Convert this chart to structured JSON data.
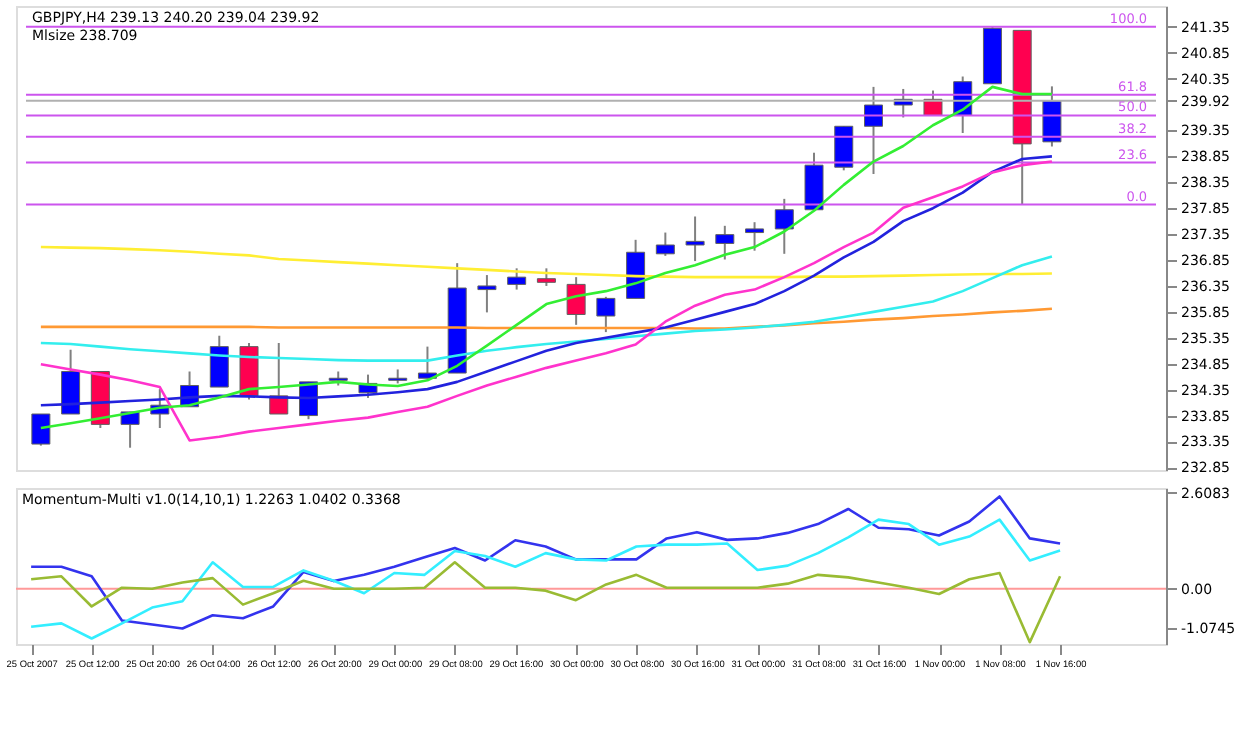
{
  "chart_data": [
    {
      "type": "candlestick",
      "title": "GBPJPY,H4 239.13 240.20 239.04 239.92",
      "subtitle": "Mlsize 238.709",
      "categories": [
        null,
        null,
        null,
        null,
        null,
        null,
        null,
        null,
        null,
        null,
        null,
        null,
        null,
        null,
        null,
        null,
        null,
        null,
        null,
        null,
        null,
        null,
        null,
        null,
        null,
        null,
        null,
        null,
        null,
        null,
        null,
        null,
        null,
        null,
        null
      ],
      "ohlc": [
        [
          233.3,
          233.88,
          233.27,
          233.88
        ],
        [
          233.88,
          235.12,
          233.88,
          234.7
        ],
        [
          234.7,
          234.7,
          233.61,
          233.68
        ],
        [
          233.68,
          233.92,
          233.23,
          233.92
        ],
        [
          233.88,
          234.36,
          233.61,
          234.05
        ],
        [
          234.02,
          234.7,
          234.02,
          234.43
        ],
        [
          234.4,
          235.39,
          234.4,
          235.18
        ],
        [
          235.18,
          235.25,
          234.16,
          234.23
        ],
        [
          234.23,
          235.25,
          233.88,
          233.88
        ],
        [
          233.85,
          234.5,
          233.78,
          234.5
        ],
        [
          234.53,
          234.7,
          234.43,
          234.57
        ],
        [
          234.29,
          234.64,
          234.19,
          234.47
        ],
        [
          234.53,
          234.74,
          234.47,
          234.57
        ],
        [
          234.57,
          235.18,
          234.57,
          234.67
        ],
        [
          234.67,
          236.79,
          234.67,
          236.31
        ],
        [
          236.28,
          236.56,
          235.84,
          236.35
        ],
        [
          236.38,
          236.69,
          236.28,
          236.52
        ],
        [
          236.49,
          236.69,
          236.35,
          236.42
        ],
        [
          236.38,
          236.52,
          235.6,
          235.8
        ],
        [
          235.77,
          236.14,
          235.46,
          236.11
        ],
        [
          236.11,
          237.24,
          236.11,
          237.0
        ],
        [
          236.97,
          237.38,
          236.93,
          237.14
        ],
        [
          237.14,
          237.69,
          236.83,
          237.21
        ],
        [
          237.17,
          237.51,
          236.86,
          237.34
        ],
        [
          237.38,
          237.58,
          237.03,
          237.45
        ],
        [
          237.45,
          238.03,
          236.97,
          237.82
        ],
        [
          237.82,
          238.92,
          237.82,
          238.68
        ],
        [
          238.64,
          239.43,
          238.58,
          239.43
        ],
        [
          239.43,
          240.19,
          238.51,
          239.84
        ],
        [
          239.84,
          240.15,
          239.6,
          239.95
        ],
        [
          239.95,
          240.12,
          239.64,
          239.64
        ],
        [
          239.64,
          240.39,
          239.3,
          240.29
        ],
        [
          240.25,
          241.35,
          240.25,
          241.32
        ],
        [
          241.28,
          241.28,
          237.92,
          239.09
        ],
        [
          239.13,
          240.2,
          239.04,
          239.92
        ]
      ],
      "colors": [
        "#0000ff",
        "#0000ff",
        "#ff0050",
        "#0000ff",
        "#0000ff",
        "#0000ff",
        "#0000ff",
        "#ff0050",
        "#ff0050",
        "#0000ff",
        "#0000ff",
        "#0000ff",
        "#0000ff",
        "#0000ff",
        "#0000ff",
        "#0000ff",
        "#0000ff",
        "#ff0050",
        "#ff0050",
        "#0000ff",
        "#0000ff",
        "#0000ff",
        "#0000ff",
        "#0000ff",
        "#0000ff",
        "#0000ff",
        "#0000ff",
        "#0000ff",
        "#0000ff",
        "#0000ff",
        "#ff0050",
        "#0000ff",
        "#0000ff",
        "#ff0050",
        "#0000ff"
      ],
      "series": [
        {
          "type": "line",
          "color": "#ffee33",
          "values": [
            237.1,
            237.09,
            237.08,
            237.06,
            237.04,
            237.01,
            236.97,
            236.94,
            236.87,
            236.84,
            236.81,
            236.78,
            236.75,
            236.72,
            236.69,
            236.66,
            236.63,
            236.6,
            236.58,
            236.56,
            236.54,
            236.53,
            236.52,
            236.52,
            236.52,
            236.52,
            236.53,
            236.53,
            236.54,
            236.55,
            236.56,
            236.57,
            236.58,
            236.58,
            236.59
          ]
        },
        {
          "type": "line",
          "color": "#ff9933",
          "values": [
            235.56,
            235.56,
            235.56,
            235.56,
            235.56,
            235.56,
            235.56,
            235.56,
            235.55,
            235.55,
            235.55,
            235.55,
            235.55,
            235.55,
            235.55,
            235.54,
            235.54,
            235.54,
            235.54,
            235.54,
            235.54,
            235.54,
            235.53,
            235.53,
            235.56,
            235.59,
            235.63,
            235.66,
            235.7,
            235.73,
            235.77,
            235.8,
            235.84,
            235.87,
            235.91
          ]
        },
        {
          "type": "line",
          "color": "#33eeee",
          "values": [
            235.25,
            235.23,
            235.18,
            235.13,
            235.09,
            235.05,
            235.01,
            234.98,
            234.96,
            234.94,
            234.92,
            234.91,
            234.91,
            234.91,
            235.01,
            235.1,
            235.17,
            235.23,
            235.28,
            235.33,
            235.38,
            235.43,
            235.48,
            235.51,
            235.55,
            235.6,
            235.66,
            235.75,
            235.85,
            235.95,
            236.05,
            236.25,
            236.5,
            236.75,
            236.92
          ]
        },
        {
          "type": "line",
          "color": "#2222dd",
          "values": [
            234.05,
            234.07,
            234.1,
            234.13,
            234.16,
            234.2,
            234.23,
            234.22,
            234.2,
            234.19,
            234.22,
            234.25,
            234.3,
            234.36,
            234.5,
            234.7,
            234.9,
            235.1,
            235.25,
            235.35,
            235.45,
            235.55,
            235.7,
            235.85,
            236.0,
            236.25,
            236.55,
            236.9,
            237.2,
            237.6,
            237.85,
            238.15,
            238.55,
            238.8,
            238.85
          ]
        },
        {
          "type": "line",
          "color": "#ff33cc",
          "values": [
            234.84,
            234.74,
            234.64,
            234.53,
            234.4,
            233.37,
            233.44,
            233.54,
            233.61,
            233.68,
            233.75,
            233.81,
            233.92,
            234.02,
            234.23,
            234.43,
            234.6,
            234.77,
            234.91,
            235.05,
            235.22,
            235.66,
            235.97,
            236.18,
            236.28,
            236.52,
            236.79,
            237.1,
            237.38,
            237.86,
            238.06,
            238.27,
            238.54,
            238.68,
            238.75
          ]
        },
        {
          "type": "line",
          "color": "#33ee33",
          "values": [
            233.61,
            233.7,
            233.8,
            233.9,
            234.0,
            234.05,
            234.2,
            234.36,
            234.4,
            234.45,
            234.5,
            234.45,
            234.42,
            234.53,
            234.81,
            235.2,
            235.6,
            236.0,
            236.15,
            236.25,
            236.4,
            236.6,
            236.75,
            236.95,
            237.1,
            237.4,
            237.8,
            238.3,
            238.75,
            239.05,
            239.45,
            239.75,
            240.19,
            240.05,
            240.05
          ]
        }
      ],
      "ref_lines": [
        {
          "axis": "y",
          "value": 239.92,
          "color": "#b0b0b0"
        },
        {
          "axis": "y",
          "value": 241.35,
          "color": "#cc55ee"
        },
        {
          "axis": "y",
          "value": 240.04,
          "color": "#cc55ee"
        },
        {
          "axis": "y",
          "value": 239.64,
          "color": "#cc55ee"
        },
        {
          "axis": "y",
          "value": 239.23,
          "color": "#cc55ee"
        },
        {
          "axis": "y",
          "value": 238.73,
          "color": "#cc55ee"
        },
        {
          "axis": "y",
          "value": 237.92,
          "color": "#cc55ee"
        }
      ],
      "annotations": [
        {
          "text": "100.0",
          "y": 241.35
        },
        {
          "text": "61.8",
          "y": 240.04
        },
        {
          "text": "50.0",
          "y": 239.64
        },
        {
          "text": "38.2",
          "y": 239.23
        },
        {
          "text": "23.6",
          "y": 238.73
        },
        {
          "text": "0.0",
          "y": 237.92
        }
      ],
      "ylim": [
        232.8,
        241.75
      ],
      "yticks": [
        232.85,
        233.35,
        233.85,
        234.35,
        234.85,
        235.35,
        235.85,
        236.35,
        236.85,
        237.35,
        237.85,
        238.35,
        238.85,
        239.35,
        239.92,
        240.35,
        240.85,
        241.35
      ],
      "tick_labels": "y",
      "grid": false
    },
    {
      "type": "line",
      "title": "Momentum-Multi v1.0(14,10,1) 1.2263 1.0402 0.3368",
      "categories": [
        "25 Oct 2007",
        null,
        "25 Oct 12:00",
        null,
        "25 Oct 20:00",
        null,
        "26 Oct 04:00",
        null,
        "26 Oct 12:00",
        null,
        "26 Oct 20:00",
        null,
        "29 Oct 00:00",
        null,
        "29 Oct 08:00",
        null,
        "29 Oct 16:00",
        null,
        "30 Oct 00:00",
        null,
        "30 Oct 08:00",
        null,
        "30 Oct 16:00",
        null,
        "31 Oct 00:00",
        null,
        "31 Oct 08:00",
        null,
        "31 Oct 16:00",
        null,
        "1 Nov 00:00",
        null,
        "1 Nov 08:00",
        null,
        "1 Nov 16:00"
      ],
      "series": [
        {
          "color": "#3333ee",
          "values": [
            0.6,
            0.6,
            0.34,
            -0.86,
            -0.97,
            -1.08,
            -0.72,
            -0.8,
            -0.48,
            0.46,
            0.21,
            0.38,
            0.6,
            0.86,
            1.11,
            0.77,
            1.32,
            1.15,
            0.8,
            0.8,
            0.8,
            1.37,
            1.54,
            1.33,
            1.37,
            1.52,
            1.76,
            2.17,
            1.66,
            1.62,
            1.45,
            1.83,
            2.51,
            1.37,
            1.23
          ]
        },
        {
          "color": "#33eeff",
          "values": [
            -1.03,
            -0.94,
            -1.35,
            -0.94,
            -0.51,
            -0.34,
            0.72,
            0.05,
            0.05,
            0.5,
            0.22,
            -0.12,
            0.43,
            0.38,
            1.03,
            0.89,
            0.6,
            0.97,
            0.8,
            0.77,
            1.15,
            1.2,
            1.2,
            1.23,
            0.51,
            0.63,
            0.97,
            1.4,
            1.88,
            1.76,
            1.2,
            1.42,
            1.88,
            0.77,
            1.04
          ]
        },
        {
          "color": "#99bb33",
          "values": [
            0.26,
            0.34,
            -0.48,
            0.03,
            0.0,
            0.17,
            0.29,
            -0.43,
            -0.12,
            0.22,
            0.0,
            0.0,
            0.0,
            0.03,
            0.72,
            0.03,
            0.03,
            -0.05,
            -0.31,
            0.12,
            0.38,
            0.03,
            0.03,
            0.03,
            0.03,
            0.14,
            0.38,
            0.31,
            0.17,
            0.03,
            -0.14,
            0.26,
            0.43,
            -1.45,
            0.34
          ]
        }
      ],
      "ref_lines": [
        {
          "axis": "y",
          "value": 0,
          "color": "#ff9999"
        }
      ],
      "ylim": [
        -1.5,
        2.74
      ],
      "yticks": [
        -1.0745,
        {
          "value": 0,
          "label": "0.00"
        },
        2.6083
      ],
      "grid": false
    }
  ]
}
